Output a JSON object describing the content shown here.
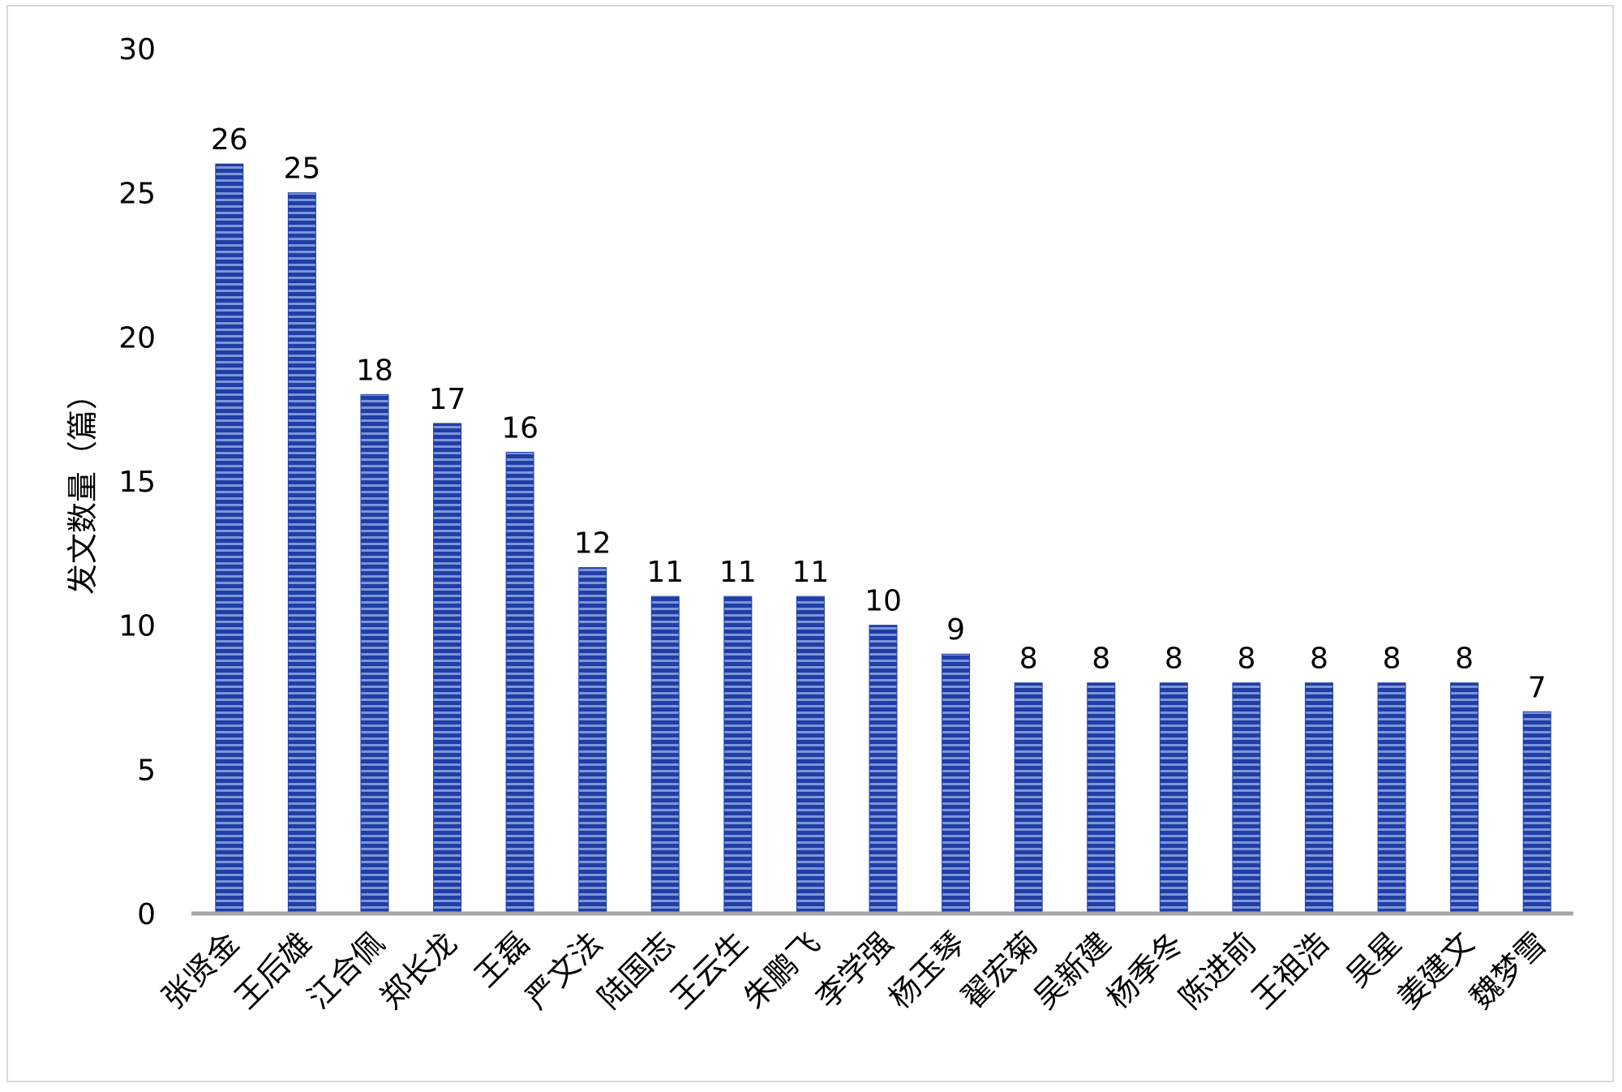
{
  "chart_data": {
    "type": "bar",
    "ylabel": "发文数量（篇）",
    "xlabel": "",
    "ylim": [
      0,
      30
    ],
    "yticks": [
      0,
      5,
      10,
      15,
      20,
      25,
      30
    ],
    "grid": false,
    "legend": "none",
    "categories": [
      "张贤金",
      "王后雄",
      "江合佩",
      "郑长龙",
      "王磊",
      "严文法",
      "陆国志",
      "王云生",
      "朱鹏飞",
      "李学强",
      "杨玉琴",
      "翟宏菊",
      "吴新建",
      "杨季冬",
      "陈进前",
      "王祖浩",
      "吴星",
      "姜建文",
      "魏梦雪"
    ],
    "values": [
      26,
      25,
      18,
      17,
      16,
      12,
      11,
      11,
      11,
      10,
      9,
      8,
      8,
      8,
      8,
      8,
      8,
      8,
      7
    ],
    "colors": {
      "bar": "#1f3fa6",
      "bar_stripe": "#7f95d8",
      "axis": "#a6a6a6"
    }
  }
}
